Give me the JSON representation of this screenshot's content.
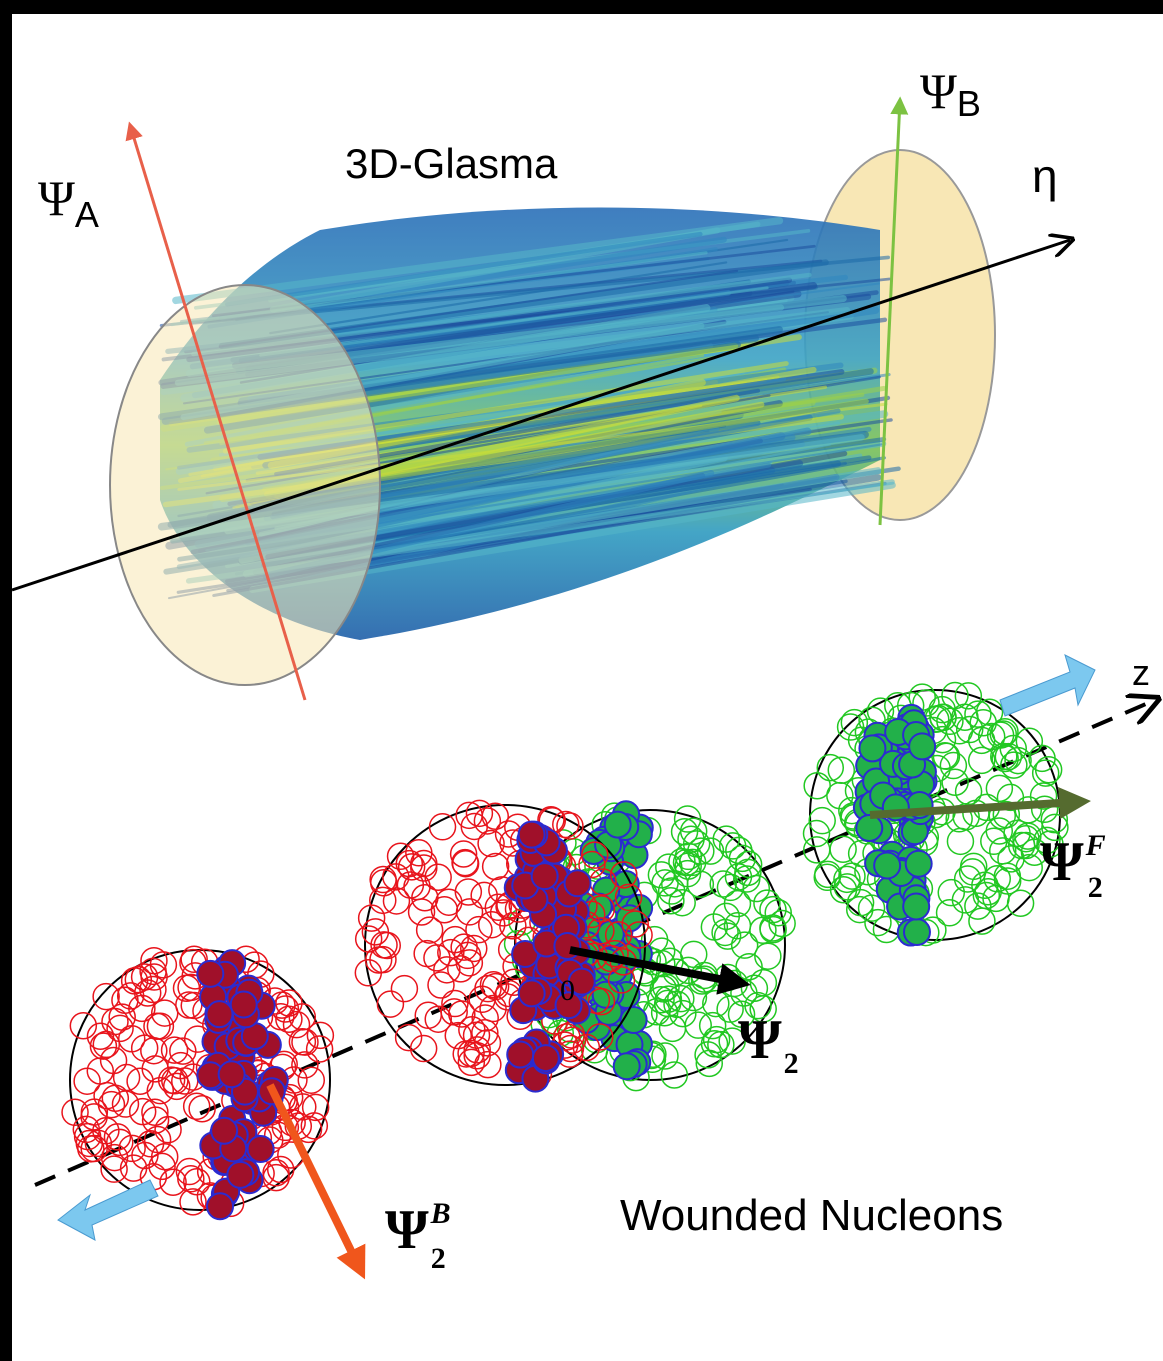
{
  "labels": {
    "psi_a": {
      "symbol": "Ψ",
      "sub": "A"
    },
    "glasma": "3D-Glasma",
    "psi_b": {
      "symbol": "Ψ",
      "sub": "B"
    },
    "eta": "η",
    "z": "z",
    "origin": "0",
    "psi2_b": {
      "symbol": "Ψ",
      "sup": "B",
      "sub": "2"
    },
    "psi2": {
      "symbol": "Ψ",
      "sub": "2"
    },
    "psi2_f": {
      "symbol": "Ψ",
      "sup": "F",
      "sub": "2"
    },
    "wounded": "Wounded Nucleons"
  }
}
